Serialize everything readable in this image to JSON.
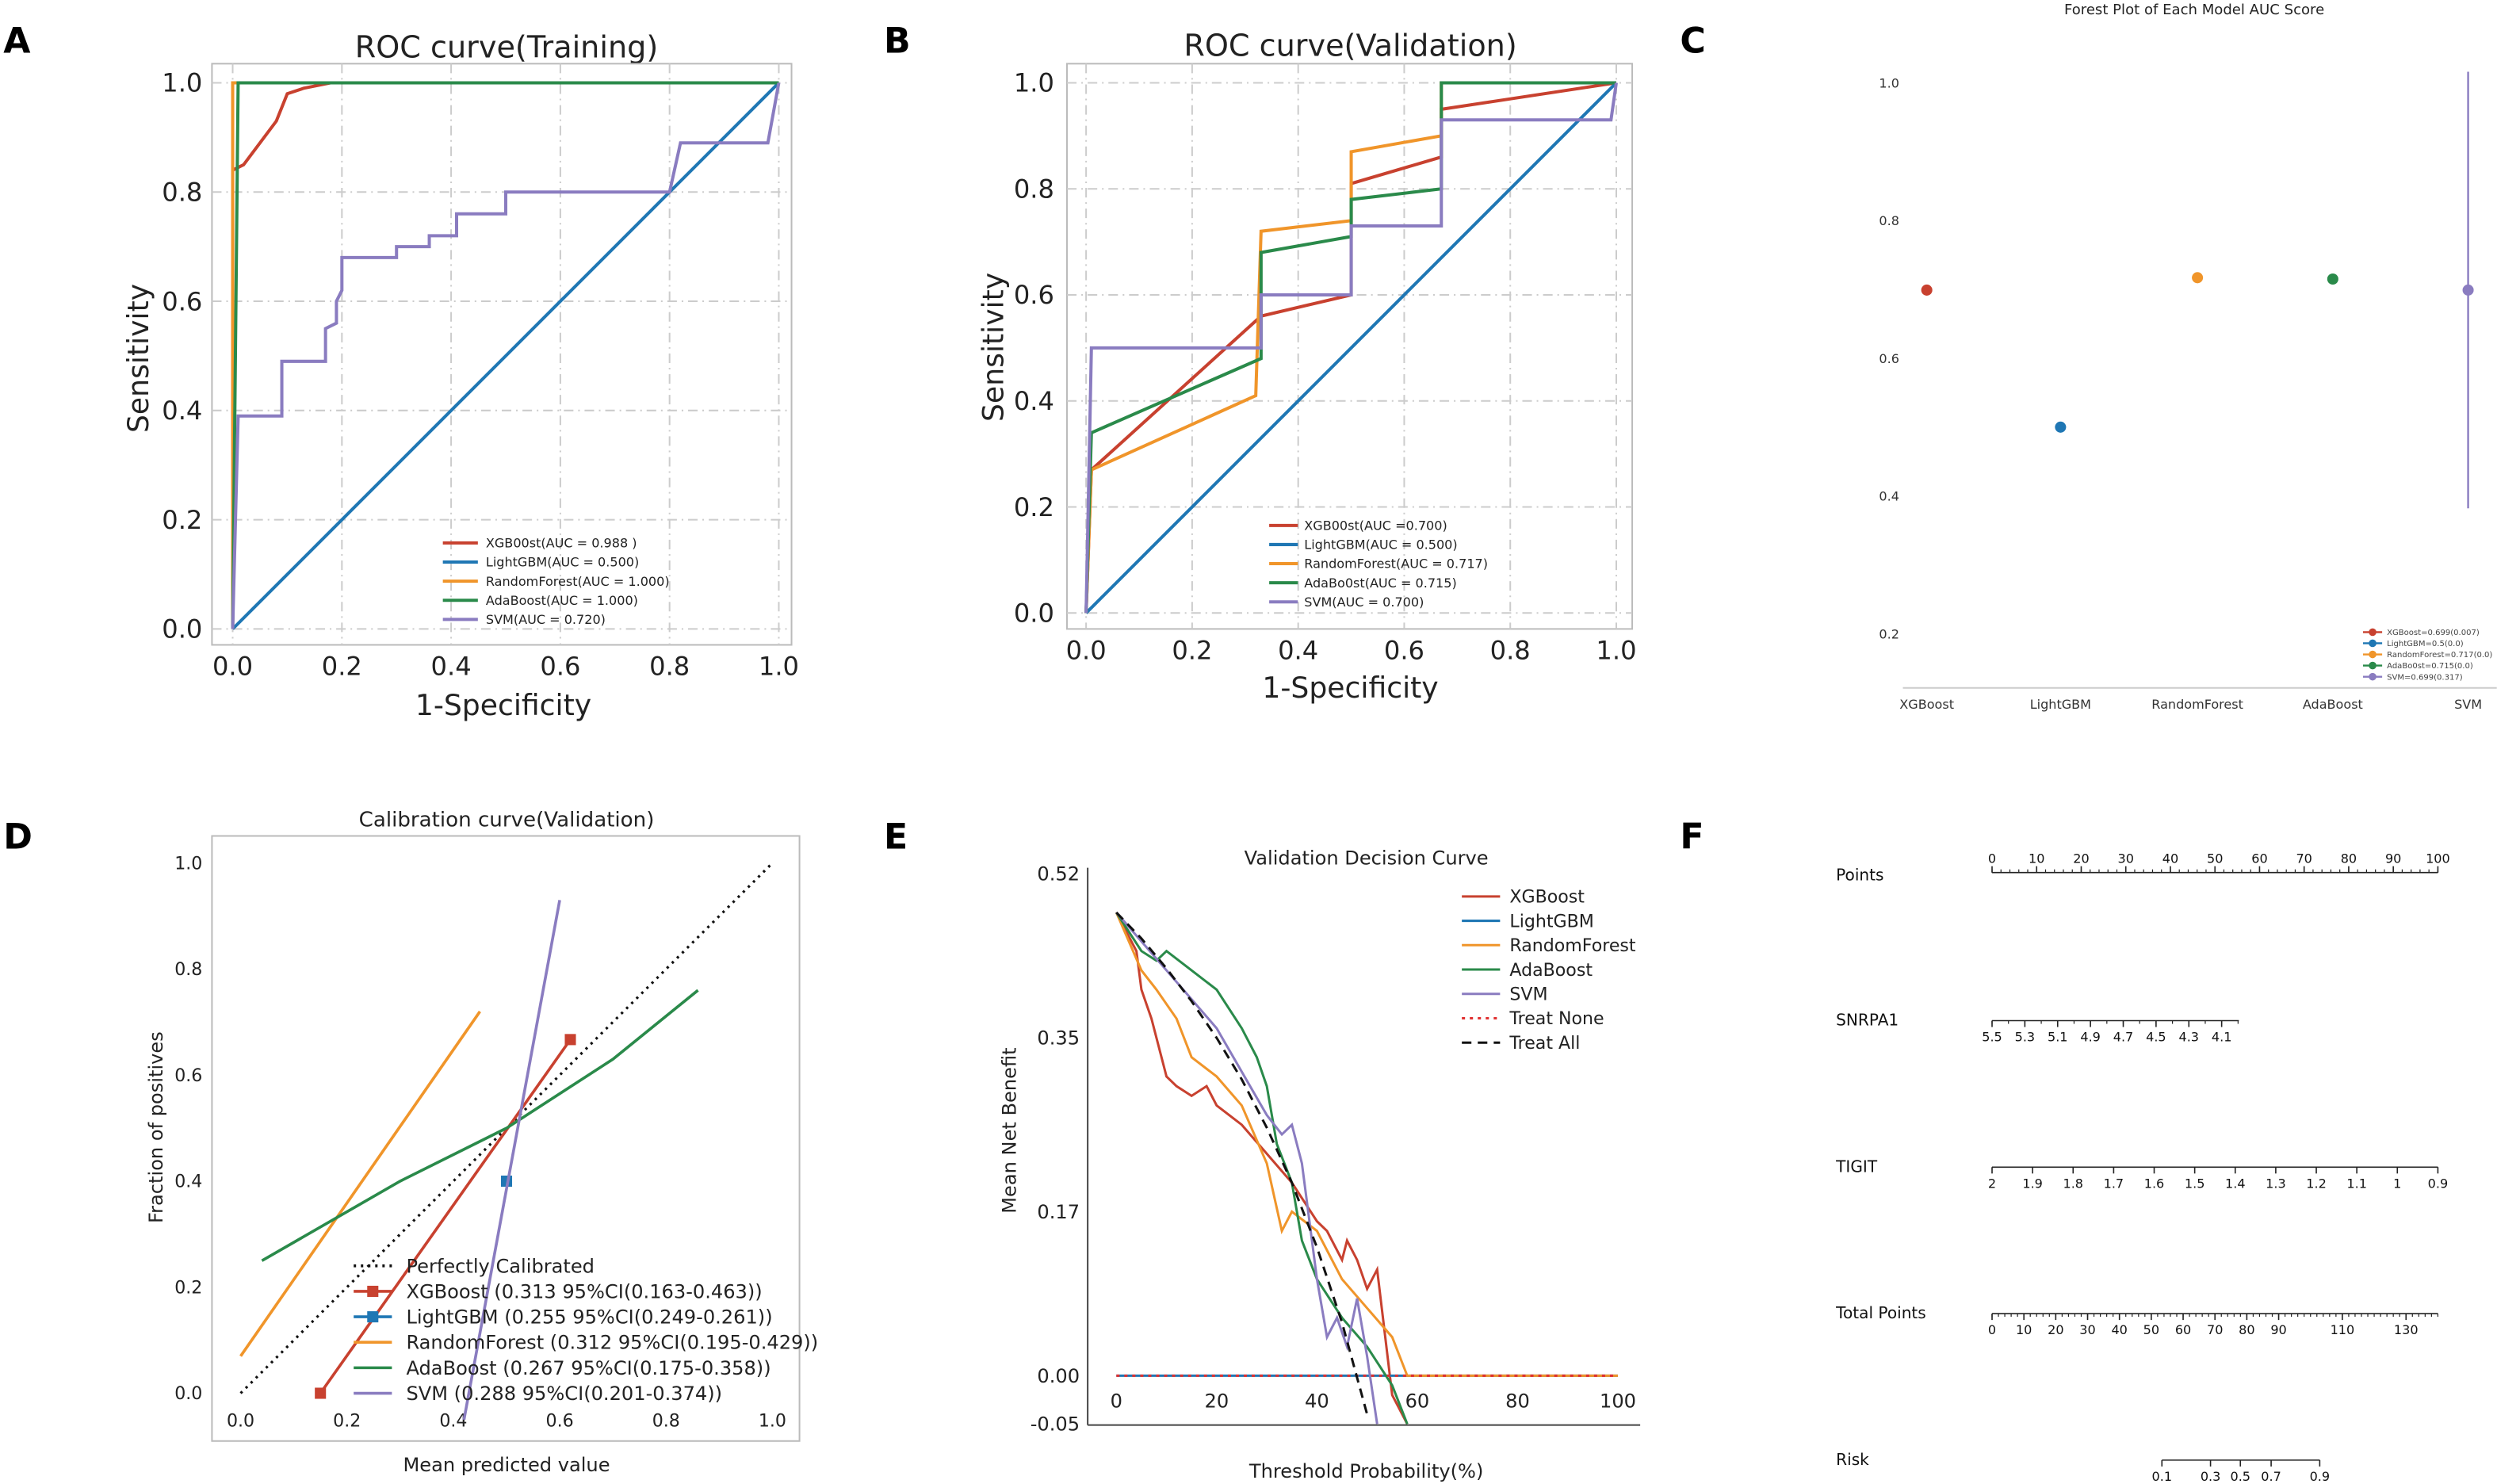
{
  "panel_labels": [
    "A",
    "B",
    "C",
    "D",
    "E",
    "F"
  ],
  "colors": {
    "XGBoost": "#c8412f",
    "LightGBM": "#1f77b4",
    "RandomForest": "#f0952a",
    "AdaBoost": "#2a8a4a",
    "SVM": "#8a7cc0",
    "TreatNone": "#e03030",
    "TreatAll": "#111111"
  },
  "chart_data": [
    {
      "id": "A",
      "type": "line",
      "title": "ROC curve(Training)",
      "xlabel": "1-Specificity",
      "ylabel": "Sensitivity",
      "xlim": [
        0,
        1
      ],
      "ylim": [
        0,
        1
      ],
      "grid": true,
      "legend": "bottom-right",
      "xticks": [
        "0.0",
        "0.2",
        "0.4",
        "0.6",
        "0.8",
        "1.0"
      ],
      "yticks": [
        "0.0",
        "0.2",
        "0.4",
        "0.6",
        "0.8",
        "1.0"
      ],
      "series": [
        {
          "name": "XGB00st(AUC = 0.988 )",
          "model": "XGBoost",
          "points": [
            [
              0,
              0
            ],
            [
              0,
              0.84
            ],
            [
              0.02,
              0.85
            ],
            [
              0.08,
              0.93
            ],
            [
              0.1,
              0.98
            ],
            [
              0.13,
              0.99
            ],
            [
              0.18,
              1
            ],
            [
              1,
              1
            ]
          ]
        },
        {
          "name": "LightGBM(AUC = 0.500)",
          "model": "LightGBM",
          "points": [
            [
              0,
              0
            ],
            [
              1,
              1
            ]
          ]
        },
        {
          "name": "RandomForest(AUC = 1.000)",
          "model": "RandomForest",
          "points": [
            [
              0,
              0
            ],
            [
              0,
              1
            ],
            [
              1,
              1
            ]
          ]
        },
        {
          "name": "AdaBoost(AUC = 1.000)",
          "model": "AdaBoost",
          "points": [
            [
              0,
              0
            ],
            [
              0.01,
              1
            ],
            [
              1,
              1
            ]
          ]
        },
        {
          "name": "SVM(AUC = 0.720)",
          "model": "SVM",
          "points": [
            [
              0,
              0
            ],
            [
              0.01,
              0.39
            ],
            [
              0.09,
              0.39
            ],
            [
              0.09,
              0.49
            ],
            [
              0.17,
              0.49
            ],
            [
              0.17,
              0.55
            ],
            [
              0.19,
              0.56
            ],
            [
              0.19,
              0.6
            ],
            [
              0.2,
              0.62
            ],
            [
              0.2,
              0.68
            ],
            [
              0.3,
              0.68
            ],
            [
              0.3,
              0.7
            ],
            [
              0.36,
              0.7
            ],
            [
              0.36,
              0.72
            ],
            [
              0.41,
              0.72
            ],
            [
              0.41,
              0.76
            ],
            [
              0.5,
              0.76
            ],
            [
              0.5,
              0.8
            ],
            [
              0.8,
              0.8
            ],
            [
              0.82,
              0.89
            ],
            [
              0.98,
              0.89
            ],
            [
              1,
              1
            ]
          ]
        }
      ]
    },
    {
      "id": "B",
      "type": "line",
      "title": "ROC curve(Validation)",
      "xlabel": "1-Specificity",
      "ylabel": "Sensitivity",
      "xlim": [
        0,
        1
      ],
      "ylim": [
        0,
        1
      ],
      "grid": true,
      "legend": "bottom-right",
      "xticks": [
        "0.0",
        "0.2",
        "0.4",
        "0.6",
        "0.8",
        "1.0"
      ],
      "yticks": [
        "0.0",
        "0.2",
        "0.4",
        "0.6",
        "0.8",
        "1.0"
      ],
      "series": [
        {
          "name": "XGB00st(AUC =0.700)",
          "model": "XGBoost",
          "points": [
            [
              0,
              0
            ],
            [
              0.01,
              0.27
            ],
            [
              0.33,
              0.56
            ],
            [
              0.5,
              0.6
            ],
            [
              0.5,
              0.81
            ],
            [
              0.67,
              0.86
            ],
            [
              0.67,
              0.95
            ],
            [
              1,
              1
            ]
          ]
        },
        {
          "name": "LightGBM(AUC = 0.500)",
          "model": "LightGBM",
          "points": [
            [
              0,
              0
            ],
            [
              1,
              1
            ]
          ]
        },
        {
          "name": "RandomForest(AUC = 0.717)",
          "model": "RandomForest",
          "points": [
            [
              0,
              0
            ],
            [
              0.01,
              0.27
            ],
            [
              0.32,
              0.41
            ],
            [
              0.33,
              0.72
            ],
            [
              0.5,
              0.74
            ],
            [
              0.5,
              0.87
            ],
            [
              0.67,
              0.9
            ],
            [
              0.67,
              1
            ],
            [
              1,
              1
            ]
          ]
        },
        {
          "name": "AdaBo0st(AUC = 0.715)",
          "model": "AdaBoost",
          "points": [
            [
              0,
              0
            ],
            [
              0.01,
              0.34
            ],
            [
              0.33,
              0.48
            ],
            [
              0.33,
              0.68
            ],
            [
              0.5,
              0.71
            ],
            [
              0.5,
              0.78
            ],
            [
              0.67,
              0.8
            ],
            [
              0.67,
              1
            ],
            [
              1,
              1
            ]
          ]
        },
        {
          "name": "SVM(AUC = 0.700)",
          "model": "SVM",
          "points": [
            [
              0,
              0
            ],
            [
              0.01,
              0.5
            ],
            [
              0.33,
              0.5
            ],
            [
              0.33,
              0.6
            ],
            [
              0.5,
              0.6
            ],
            [
              0.5,
              0.73
            ],
            [
              0.67,
              0.73
            ],
            [
              0.67,
              0.93
            ],
            [
              0.99,
              0.93
            ],
            [
              1,
              1
            ]
          ]
        }
      ]
    },
    {
      "id": "C",
      "type": "scatter",
      "title": "Forest Plot of Each Model AUC Score",
      "categories": [
        "XGBoost",
        "LightGBM",
        "RandomForest",
        "AdaBoost",
        "SVM"
      ],
      "yticks": [
        "0.2",
        "0.4",
        "0.6",
        "0.8",
        "1.0"
      ],
      "legend": "bottom-right",
      "values": [
        0.699,
        0.5,
        0.717,
        0.715,
        0.699
      ],
      "errors": [
        0.007,
        0.0,
        0.0,
        0.0,
        0.317
      ],
      "legend_entries": [
        "XGBoost=0.699(0.007)",
        "LightGBM=0.5(0.0)",
        "RandomForest=0.717(0.0)",
        "AdaBo0st=0.715(0.0)",
        "SVM=0.699(0.317)"
      ],
      "models": [
        "XGBoost",
        "LightGBM",
        "RandomForest",
        "AdaBoost",
        "SVM"
      ]
    },
    {
      "id": "D",
      "type": "line",
      "title": "Calibration curve(Validation)",
      "xlabel": "Mean predicted value",
      "ylabel": "Fraction of positives",
      "xlim": [
        0,
        1
      ],
      "ylim": [
        0,
        1
      ],
      "grid": false,
      "legend": "bottom-center",
      "xticks": [
        "0.0",
        "0.2",
        "0.4",
        "0.6",
        "0.8",
        "1.0"
      ],
      "yticks": [
        "0.0",
        "0.2",
        "0.4",
        "0.6",
        "0.8",
        "1.0"
      ],
      "reference": {
        "name": "Perfectly Calibrated",
        "points": [
          [
            0,
            0
          ],
          [
            1,
            1
          ]
        ]
      },
      "series": [
        {
          "name": "XGBoost (0.313 95%CI(0.163-0.463))",
          "model": "XGBoost",
          "marker": "square",
          "points": [
            [
              0.15,
              0.0
            ],
            [
              0.62,
              0.667
            ]
          ]
        },
        {
          "name": "LightGBM (0.255 95%CI(0.249-0.261))",
          "model": "LightGBM",
          "marker": "square",
          "points": [
            [
              0.5,
              0.4
            ]
          ]
        },
        {
          "name": "RandomForest (0.312 95%CI(0.195-0.429))",
          "model": "RandomForest",
          "points": [
            [
              0.0,
              0.07
            ],
            [
              0.45,
              0.72
            ]
          ]
        },
        {
          "name": "AdaBoost (0.267 95%CI(0.175-0.358))",
          "model": "AdaBoost",
          "points": [
            [
              0.04,
              0.25
            ],
            [
              0.3,
              0.4
            ],
            [
              0.5,
              0.5
            ],
            [
              0.7,
              0.63
            ],
            [
              0.86,
              0.76
            ]
          ]
        },
        {
          "name": "SVM (0.288 95%CI(0.201-0.374))",
          "model": "SVM",
          "points": [
            [
              0.42,
              -0.05
            ],
            [
              0.6,
              0.93
            ]
          ]
        }
      ]
    },
    {
      "id": "E",
      "type": "line",
      "title": "Validation Decision Curve",
      "xlabel": "Threshold Probability(%)",
      "ylabel": "Mean Net Benefit",
      "xlim": [
        0,
        100
      ],
      "ylim": [
        -0.05,
        0.52
      ],
      "grid": false,
      "legend": "top-right",
      "xticks": [
        "0",
        "20",
        "40",
        "60",
        "80",
        "100"
      ],
      "yticks": [
        "-0.05",
        "0.00",
        "0.17",
        "0.35",
        "0.52"
      ],
      "series": [
        {
          "name": "XGBoost",
          "model": "XGBoost",
          "points": [
            [
              0,
              0.48
            ],
            [
              4,
              0.44
            ],
            [
              5,
              0.4
            ],
            [
              7,
              0.37
            ],
            [
              8,
              0.35
            ],
            [
              10,
              0.31
            ],
            [
              12,
              0.3
            ],
            [
              15,
              0.29
            ],
            [
              18,
              0.3
            ],
            [
              20,
              0.28
            ],
            [
              25,
              0.26
            ],
            [
              30,
              0.23
            ],
            [
              35,
              0.2
            ],
            [
              40,
              0.16
            ],
            [
              42,
              0.15
            ],
            [
              45,
              0.12
            ],
            [
              46,
              0.14
            ],
            [
              48,
              0.12
            ],
            [
              50,
              0.09
            ],
            [
              52,
              0.11
            ],
            [
              55,
              -0.02
            ],
            [
              58,
              -0.05
            ]
          ]
        },
        {
          "name": "LightGBM",
          "model": "LightGBM",
          "points": [
            [
              0,
              0
            ],
            [
              100,
              0
            ]
          ]
        },
        {
          "name": "RandomForest",
          "model": "RandomForest",
          "points": [
            [
              0,
              0.48
            ],
            [
              5,
              0.42
            ],
            [
              8,
              0.4
            ],
            [
              12,
              0.37
            ],
            [
              15,
              0.33
            ],
            [
              20,
              0.31
            ],
            [
              25,
              0.28
            ],
            [
              30,
              0.22
            ],
            [
              33,
              0.15
            ],
            [
              35,
              0.17
            ],
            [
              40,
              0.15
            ],
            [
              45,
              0.1
            ],
            [
              50,
              0.07
            ],
            [
              55,
              0.04
            ],
            [
              58,
              0.0
            ],
            [
              100,
              0.0
            ]
          ]
        },
        {
          "name": "AdaBoost",
          "model": "AdaBoost",
          "points": [
            [
              0,
              0.48
            ],
            [
              5,
              0.44
            ],
            [
              8,
              0.43
            ],
            [
              10,
              0.44
            ],
            [
              15,
              0.42
            ],
            [
              20,
              0.4
            ],
            [
              25,
              0.36
            ],
            [
              28,
              0.33
            ],
            [
              30,
              0.3
            ],
            [
              32,
              0.24
            ],
            [
              35,
              0.2
            ],
            [
              37,
              0.14
            ],
            [
              40,
              0.1
            ],
            [
              45,
              0.06
            ],
            [
              50,
              0.03
            ],
            [
              55,
              -0.01
            ],
            [
              58,
              -0.05
            ]
          ]
        },
        {
          "name": "SVM",
          "model": "SVM",
          "points": [
            [
              0,
              0.48
            ],
            [
              10,
              0.42
            ],
            [
              20,
              0.36
            ],
            [
              30,
              0.27
            ],
            [
              33,
              0.25
            ],
            [
              35,
              0.26
            ],
            [
              37,
              0.22
            ],
            [
              40,
              0.1
            ],
            [
              42,
              0.04
            ],
            [
              44,
              0.06
            ],
            [
              46,
              0.03
            ],
            [
              48,
              0.08
            ],
            [
              50,
              0.02
            ],
            [
              52,
              -0.05
            ]
          ]
        },
        {
          "name": "Treat None",
          "model": "TreatNone",
          "dash": "dotted",
          "points": [
            [
              0,
              0
            ],
            [
              100,
              0
            ]
          ]
        },
        {
          "name": "Treat All",
          "model": "TreatAll",
          "dash": "dashed",
          "points": [
            [
              0,
              0.48
            ],
            [
              5,
              0.453
            ],
            [
              10,
              0.422
            ],
            [
              15,
              0.388
            ],
            [
              20,
              0.35
            ],
            [
              25,
              0.307
            ],
            [
              30,
              0.257
            ],
            [
              35,
              0.2
            ],
            [
              40,
              0.133
            ],
            [
              45,
              0.055
            ],
            [
              50,
              -0.04
            ]
          ]
        }
      ]
    },
    {
      "id": "F",
      "type": "nomogram",
      "rows": [
        {
          "name": "Points",
          "range": [
            0,
            100
          ],
          "labels": [
            "0",
            "10",
            "20",
            "30",
            "40",
            "50",
            "60",
            "70",
            "80",
            "90",
            "100"
          ],
          "label_pos": "above"
        },
        {
          "name": "SNRPA1",
          "range": [
            5.5,
            4.0
          ],
          "labels": [
            "5.5",
            "5.3",
            "5.1",
            "4.9",
            "4.7",
            "4.5",
            "4.3",
            "4.1"
          ],
          "label_pos": "below"
        },
        {
          "name": "TIGIT",
          "range": [
            2,
            0.9
          ],
          "labels": [
            "2",
            "1.9",
            "1.8",
            "1.7",
            "1.6",
            "1.5",
            "1.4",
            "1.3",
            "1.2",
            "1.1",
            "1",
            "0.9"
          ],
          "label_pos": "below"
        },
        {
          "name": "Total Points",
          "range": [
            0,
            140
          ],
          "labels": [
            "0",
            "10",
            "20",
            "30",
            "40",
            "50",
            "60",
            "70",
            "80",
            "90",
            "110",
            "130"
          ],
          "label_pos": "below"
        },
        {
          "name": "Risk",
          "labels": [
            "0.1",
            "0.3",
            "0.5",
            "0.7",
            "0.9"
          ],
          "label_pos": "below"
        }
      ]
    }
  ]
}
